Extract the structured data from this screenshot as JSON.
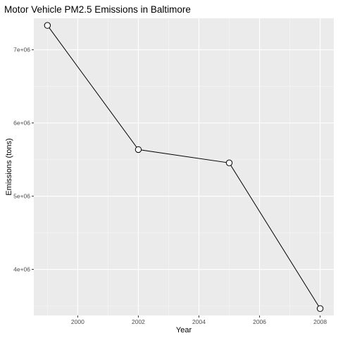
{
  "chart_data": {
    "type": "line",
    "title": "Motor Vehicle PM2.5 Emissions in Baltimore",
    "xlabel": "Year",
    "ylabel": "Emissions (tons)",
    "x": [
      1999,
      2002,
      2005,
      2008
    ],
    "series": [
      {
        "values": [
          7332967,
          5636717,
          5454734,
          3464206
        ]
      }
    ],
    "xlim": [
      1998.55,
      2008.45
    ],
    "ylim": [
      3370000,
      7430000
    ],
    "x_ticks": [
      2000,
      2002,
      2004,
      2006,
      2008
    ],
    "x_tick_labels": [
      "2000",
      "2002",
      "2004",
      "2006",
      "2008"
    ],
    "y_ticks": [
      4000000,
      5000000,
      6000000,
      7000000
    ],
    "y_tick_labels": [
      "4e+06",
      "5e+06",
      "6e+06",
      "7e+06"
    ],
    "grid": true,
    "colors": {
      "panel": "#ebebeb",
      "grid_major": "#ffffff",
      "grid_minor": "#f5f5f5",
      "line": "#000000",
      "point_fill": "#ffffff",
      "point_stroke": "#000000"
    }
  }
}
